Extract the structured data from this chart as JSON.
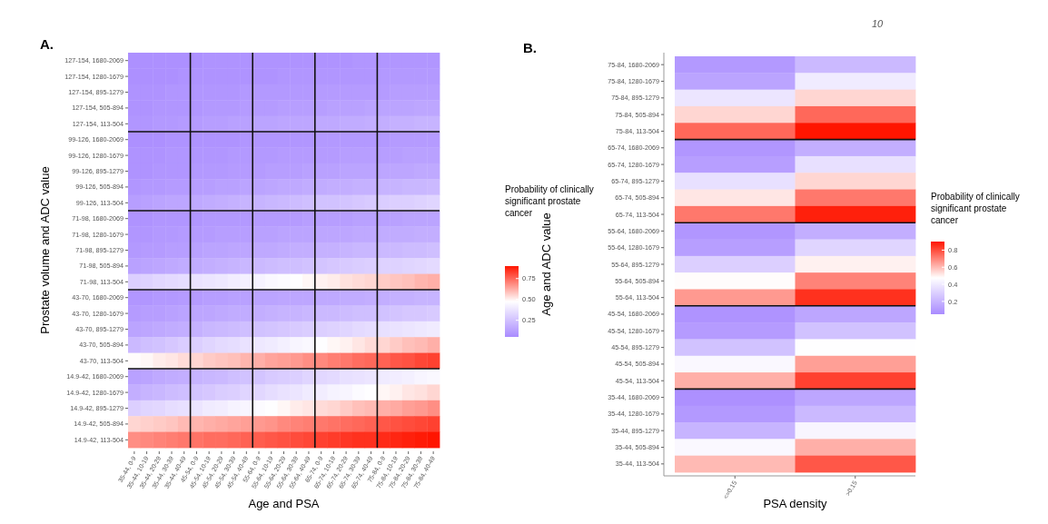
{
  "chart_data": [
    {
      "type": "heatmap",
      "title": "A.",
      "xlabel": "Age and PSA",
      "ylabel": "Prostate volume and ADC value",
      "clabel": "Probability of clinically significant prostate cancer",
      "clim": [
        0.05,
        0.9
      ],
      "cticks": [
        {
          "value": 0.25,
          "label": "0.25"
        },
        {
          "value": 0.5,
          "label": "0.50"
        },
        {
          "value": 0.75,
          "label": "0.75"
        }
      ],
      "categories": [
        "35-44, 0-9",
        "35-44, 10-19",
        "35-44, 20-29",
        "35-44, 30-39",
        "35-44, 40-49",
        "45-54, 0-9",
        "45-54, 10-19",
        "45-54, 20-29",
        "45-54, 30-39",
        "45-54, 40-49",
        "55-64, 0-9",
        "55-64, 10-19",
        "55-64, 20-29",
        "55-64, 30-39",
        "55-64, 40-49",
        "65-74, 0-9",
        "65-74, 10-19",
        "65-74, 20-29",
        "65-74, 30-39",
        "65-74, 40-49",
        "75-84, 0-9",
        "75-84, 10-19",
        "75-84, 20-29",
        "75-84, 30-39",
        "75-84, 40-49"
      ],
      "y_categories": [
        "127-154, 1680-2069",
        "127-154, 1280-1679",
        "127-154, 895-1279",
        "127-154, 505-894",
        "127-154, 113-504",
        "99-126, 1680-2069",
        "99-126, 1280-1679",
        "99-126, 895-1279",
        "99-126, 505-894",
        "99-126, 113-504",
        "71-98, 1680-2069",
        "71-98, 1280-1679",
        "71-98, 895-1279",
        "71-98, 505-894",
        "71-98, 113-504",
        "43-70, 1680-2069",
        "43-70, 1280-1679",
        "43-70, 895-1279",
        "43-70, 505-894",
        "43-70, 113-504",
        "14.9-42, 1680-2069",
        "14.9-42, 1280-1679",
        "14.9-42, 895-1279",
        "14.9-42, 505-894",
        "14.9-42, 113-504"
      ],
      "cells": [
        [
          0.07,
          0.07,
          0.07,
          0.07,
          0.07,
          0.07,
          0.08,
          0.08,
          0.08,
          0.08,
          0.08,
          0.08,
          0.08,
          0.08,
          0.08,
          0.08,
          0.08,
          0.08,
          0.09,
          0.09,
          0.09,
          0.09,
          0.09,
          0.09,
          0.09
        ],
        [
          0.07,
          0.07,
          0.07,
          0.07,
          0.08,
          0.08,
          0.08,
          0.08,
          0.08,
          0.08,
          0.08,
          0.08,
          0.09,
          0.09,
          0.09,
          0.09,
          0.09,
          0.09,
          0.09,
          0.09,
          0.1,
          0.1,
          0.1,
          0.1,
          0.1
        ],
        [
          0.08,
          0.08,
          0.08,
          0.09,
          0.09,
          0.09,
          0.09,
          0.09,
          0.09,
          0.1,
          0.1,
          0.1,
          0.1,
          0.1,
          0.1,
          0.11,
          0.11,
          0.11,
          0.11,
          0.11,
          0.11,
          0.12,
          0.12,
          0.12,
          0.12
        ],
        [
          0.08,
          0.08,
          0.09,
          0.09,
          0.09,
          0.09,
          0.1,
          0.1,
          0.1,
          0.11,
          0.11,
          0.11,
          0.12,
          0.12,
          0.12,
          0.12,
          0.13,
          0.13,
          0.13,
          0.14,
          0.14,
          0.14,
          0.14,
          0.15,
          0.15
        ],
        [
          0.09,
          0.09,
          0.1,
          0.1,
          0.11,
          0.11,
          0.12,
          0.12,
          0.13,
          0.13,
          0.14,
          0.14,
          0.15,
          0.15,
          0.15,
          0.16,
          0.16,
          0.17,
          0.17,
          0.18,
          0.18,
          0.19,
          0.19,
          0.2,
          0.2
        ],
        [
          0.07,
          0.07,
          0.07,
          0.08,
          0.08,
          0.08,
          0.08,
          0.08,
          0.08,
          0.09,
          0.09,
          0.09,
          0.09,
          0.09,
          0.09,
          0.1,
          0.1,
          0.1,
          0.1,
          0.1,
          0.1,
          0.11,
          0.11,
          0.11,
          0.11
        ],
        [
          0.08,
          0.08,
          0.08,
          0.09,
          0.09,
          0.09,
          0.09,
          0.09,
          0.1,
          0.1,
          0.1,
          0.1,
          0.11,
          0.11,
          0.11,
          0.11,
          0.11,
          0.12,
          0.12,
          0.12,
          0.12,
          0.12,
          0.13,
          0.13,
          0.13
        ],
        [
          0.08,
          0.08,
          0.09,
          0.09,
          0.09,
          0.1,
          0.1,
          0.1,
          0.11,
          0.11,
          0.11,
          0.12,
          0.12,
          0.12,
          0.13,
          0.13,
          0.13,
          0.14,
          0.14,
          0.14,
          0.15,
          0.15,
          0.15,
          0.16,
          0.16
        ],
        [
          0.09,
          0.1,
          0.1,
          0.11,
          0.11,
          0.12,
          0.12,
          0.13,
          0.13,
          0.14,
          0.14,
          0.15,
          0.16,
          0.16,
          0.17,
          0.17,
          0.18,
          0.18,
          0.19,
          0.19,
          0.2,
          0.2,
          0.21,
          0.21,
          0.22
        ],
        [
          0.12,
          0.13,
          0.14,
          0.15,
          0.15,
          0.16,
          0.17,
          0.18,
          0.19,
          0.2,
          0.2,
          0.21,
          0.22,
          0.23,
          0.24,
          0.25,
          0.25,
          0.26,
          0.27,
          0.28,
          0.29,
          0.3,
          0.3,
          0.31,
          0.32
        ],
        [
          0.08,
          0.08,
          0.09,
          0.09,
          0.09,
          0.09,
          0.1,
          0.1,
          0.1,
          0.1,
          0.11,
          0.11,
          0.11,
          0.11,
          0.12,
          0.12,
          0.12,
          0.12,
          0.13,
          0.13,
          0.13,
          0.13,
          0.14,
          0.14,
          0.14
        ],
        [
          0.09,
          0.09,
          0.1,
          0.1,
          0.11,
          0.11,
          0.11,
          0.12,
          0.12,
          0.12,
          0.13,
          0.13,
          0.14,
          0.14,
          0.14,
          0.15,
          0.15,
          0.15,
          0.16,
          0.16,
          0.17,
          0.17,
          0.17,
          0.18,
          0.18
        ],
        [
          0.1,
          0.11,
          0.11,
          0.12,
          0.12,
          0.13,
          0.14,
          0.14,
          0.15,
          0.15,
          0.16,
          0.16,
          0.17,
          0.18,
          0.18,
          0.19,
          0.19,
          0.2,
          0.21,
          0.21,
          0.22,
          0.22,
          0.23,
          0.23,
          0.24
        ],
        [
          0.13,
          0.14,
          0.15,
          0.16,
          0.17,
          0.17,
          0.18,
          0.19,
          0.2,
          0.21,
          0.22,
          0.23,
          0.24,
          0.24,
          0.25,
          0.26,
          0.27,
          0.28,
          0.29,
          0.3,
          0.31,
          0.31,
          0.32,
          0.33,
          0.34
        ],
        [
          0.3,
          0.31,
          0.33,
          0.34,
          0.35,
          0.37,
          0.38,
          0.39,
          0.41,
          0.42,
          0.43,
          0.45,
          0.46,
          0.47,
          0.49,
          0.5,
          0.51,
          0.53,
          0.54,
          0.55,
          0.57,
          0.58,
          0.59,
          0.61,
          0.62
        ],
        [
          0.09,
          0.09,
          0.1,
          0.1,
          0.11,
          0.11,
          0.12,
          0.12,
          0.13,
          0.13,
          0.14,
          0.14,
          0.15,
          0.15,
          0.15,
          0.16,
          0.16,
          0.17,
          0.17,
          0.18,
          0.18,
          0.19,
          0.19,
          0.2,
          0.2
        ],
        [
          0.11,
          0.12,
          0.12,
          0.13,
          0.14,
          0.15,
          0.15,
          0.16,
          0.17,
          0.17,
          0.18,
          0.19,
          0.2,
          0.2,
          0.21,
          0.22,
          0.22,
          0.23,
          0.24,
          0.24,
          0.25,
          0.26,
          0.27,
          0.27,
          0.28
        ],
        [
          0.14,
          0.15,
          0.16,
          0.17,
          0.18,
          0.19,
          0.21,
          0.22,
          0.23,
          0.24,
          0.25,
          0.26,
          0.27,
          0.28,
          0.29,
          0.3,
          0.31,
          0.32,
          0.34,
          0.35,
          0.36,
          0.37,
          0.38,
          0.39,
          0.4
        ],
        [
          0.22,
          0.24,
          0.25,
          0.27,
          0.29,
          0.3,
          0.32,
          0.34,
          0.35,
          0.37,
          0.39,
          0.4,
          0.42,
          0.44,
          0.45,
          0.47,
          0.49,
          0.5,
          0.52,
          0.54,
          0.55,
          0.57,
          0.59,
          0.6,
          0.62
        ],
        [
          0.48,
          0.49,
          0.51,
          0.52,
          0.54,
          0.55,
          0.57,
          0.58,
          0.59,
          0.61,
          0.62,
          0.64,
          0.65,
          0.66,
          0.68,
          0.69,
          0.71,
          0.72,
          0.74,
          0.75,
          0.76,
          0.78,
          0.79,
          0.81,
          0.82
        ],
        [
          0.13,
          0.14,
          0.16,
          0.17,
          0.18,
          0.2,
          0.21,
          0.22,
          0.24,
          0.25,
          0.26,
          0.28,
          0.29,
          0.3,
          0.32,
          0.33,
          0.34,
          0.36,
          0.37,
          0.38,
          0.4,
          0.41,
          0.42,
          0.44,
          0.45
        ],
        [
          0.18,
          0.2,
          0.21,
          0.23,
          0.24,
          0.26,
          0.27,
          0.29,
          0.3,
          0.32,
          0.33,
          0.35,
          0.37,
          0.38,
          0.4,
          0.41,
          0.43,
          0.44,
          0.46,
          0.47,
          0.49,
          0.5,
          0.52,
          0.53,
          0.55
        ],
        [
          0.3,
          0.32,
          0.33,
          0.35,
          0.36,
          0.38,
          0.4,
          0.41,
          0.43,
          0.44,
          0.46,
          0.47,
          0.49,
          0.51,
          0.52,
          0.54,
          0.55,
          0.57,
          0.59,
          0.6,
          0.62,
          0.63,
          0.65,
          0.66,
          0.68
        ],
        [
          0.55,
          0.56,
          0.57,
          0.58,
          0.6,
          0.61,
          0.62,
          0.63,
          0.64,
          0.65,
          0.66,
          0.67,
          0.69,
          0.7,
          0.71,
          0.72,
          0.73,
          0.74,
          0.75,
          0.76,
          0.78,
          0.79,
          0.8,
          0.81,
          0.82
        ],
        [
          0.68,
          0.69,
          0.7,
          0.71,
          0.72,
          0.73,
          0.74,
          0.74,
          0.75,
          0.76,
          0.77,
          0.78,
          0.79,
          0.8,
          0.81,
          0.82,
          0.83,
          0.84,
          0.85,
          0.85,
          0.86,
          0.87,
          0.88,
          0.89,
          0.9
        ]
      ]
    },
    {
      "type": "heatmap",
      "title": "B.",
      "xlabel": "PSA density",
      "ylabel": "Age and ADC value",
      "clabel": "Probability of clinically significant prostate cancer",
      "clim": [
        0.05,
        0.9
      ],
      "cticks": [
        0.2,
        0.4,
        0.6,
        0.8
      ],
      "annotations": [
        "10"
      ],
      "categories": [
        "<=0.15",
        ">0.15"
      ],
      "y_categories": [
        "75-84, 1680-2069",
        "75-84, 1280-1679",
        "75-84, 895-1279",
        "75-84, 505-894",
        "75-84, 113-504",
        "65-74, 1680-2069",
        "65-74, 1280-1679",
        "65-74, 895-1279",
        "65-74, 505-894",
        "65-74, 113-504",
        "55-64, 1680-2069",
        "55-64, 1280-1679",
        "55-64, 895-1279",
        "55-64, 505-894",
        "55-64, 113-504",
        "45-54, 1680-2069",
        "45-54, 1280-1679",
        "45-54, 895-1279",
        "45-54, 505-894",
        "45-54, 113-504",
        "35-44, 1680-2069",
        "35-44, 1280-1679",
        "35-44, 895-1279",
        "35-44, 505-894",
        "35-44, 113-504"
      ],
      "cells": [
        [
          0.1,
          0.22
        ],
        [
          0.14,
          0.4
        ],
        [
          0.38,
          0.55
        ],
        [
          0.55,
          0.75
        ],
        [
          0.75,
          0.9
        ],
        [
          0.09,
          0.18
        ],
        [
          0.12,
          0.36
        ],
        [
          0.36,
          0.55
        ],
        [
          0.52,
          0.72
        ],
        [
          0.72,
          0.88
        ],
        [
          0.09,
          0.18
        ],
        [
          0.12,
          0.32
        ],
        [
          0.3,
          0.5
        ],
        [
          0.48,
          0.7
        ],
        [
          0.66,
          0.85
        ],
        [
          0.08,
          0.15
        ],
        [
          0.11,
          0.25
        ],
        [
          0.25,
          0.47
        ],
        [
          0.45,
          0.65
        ],
        [
          0.62,
          0.82
        ],
        [
          0.07,
          0.15
        ],
        [
          0.1,
          0.22
        ],
        [
          0.2,
          0.44
        ],
        [
          0.45,
          0.62
        ],
        [
          0.6,
          0.78
        ]
      ]
    }
  ]
}
